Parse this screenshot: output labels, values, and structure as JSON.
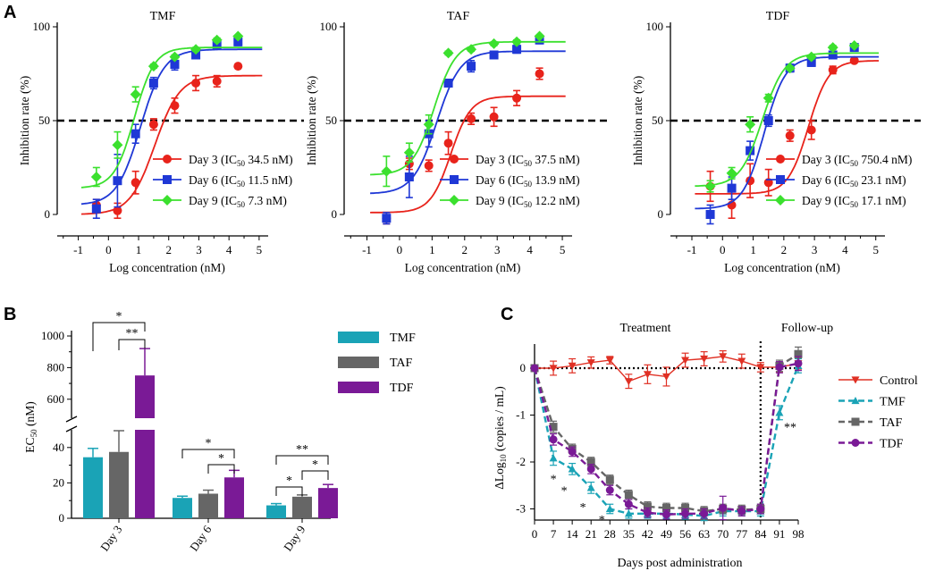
{
  "panel_labels": {
    "a": "A",
    "b": "B",
    "c": "C"
  },
  "common": {
    "a_xlabel": "Log concentration (nM)",
    "a_ylabel": "Inhibition rate (%)",
    "a_xticks": [
      "-1",
      "0",
      "1",
      "2",
      "3",
      "4",
      "5"
    ],
    "a_yticks": [
      "0",
      "50",
      "100"
    ],
    "a_sub": "50"
  },
  "colors": {
    "day3": "#e8231b",
    "day6": "#1f38d6",
    "day9": "#3be02e",
    "tmf": "#1aa3b6",
    "taf": "#666666",
    "tdf": "#7a1a96",
    "control": "#e03024"
  },
  "chart_data": [
    {
      "id": "A1",
      "type": "scatter",
      "title": "TMF",
      "xlabel": "Log concentration (nM)",
      "ylabel": "Inhibition rate (%)",
      "xlim": [
        -1.7,
        5.3
      ],
      "ylim": [
        0,
        100
      ],
      "reference_line_y": 50,
      "series": [
        {
          "name": "Day 3",
          "color": "#e8231b",
          "marker": "circle",
          "legend": "Day 3 (IC",
          "legend_value": " 34.5 nM)",
          "ic50": 34.5,
          "fit": {
            "bottom": 0,
            "top": 74,
            "logEC50": 1.54,
            "hill": 1.05
          },
          "x": [
            -0.4,
            0.3,
            0.9,
            1.5,
            2.2,
            2.9,
            3.6,
            4.3
          ],
          "y": [
            5,
            2,
            17,
            48,
            58,
            70,
            71,
            79
          ],
          "err": [
            3,
            4,
            6,
            3,
            4,
            4,
            3,
            0
          ]
        },
        {
          "name": "Day 6",
          "color": "#1f38d6",
          "marker": "square",
          "legend": "Day 6 (IC",
          "legend_value": " 11.5 nM)",
          "ic50": 11.5,
          "fit": {
            "bottom": 5,
            "top": 88,
            "logEC50": 1.06,
            "hill": 1.1
          },
          "x": [
            -0.4,
            0.3,
            0.9,
            1.5,
            2.2,
            2.9,
            3.6,
            4.3
          ],
          "y": [
            3,
            18,
            43,
            70,
            80,
            85,
            90,
            92
          ],
          "err": [
            5,
            14,
            5,
            3,
            3,
            2,
            2,
            2
          ]
        },
        {
          "name": "Day 9",
          "color": "#3be02e",
          "marker": "diamond",
          "legend": "Day 9 (IC",
          "legend_value": "  7.3 nM)",
          "ic50": 7.3,
          "fit": {
            "bottom": 14,
            "top": 89,
            "logEC50": 0.86,
            "hill": 1.3
          },
          "x": [
            -0.4,
            0.3,
            0.9,
            1.5,
            2.2,
            2.9,
            3.6,
            4.3
          ],
          "y": [
            20,
            37,
            64,
            79,
            84,
            88,
            93,
            95
          ],
          "err": [
            5,
            7,
            4,
            1,
            1,
            1,
            1,
            0
          ]
        }
      ]
    },
    {
      "id": "A2",
      "type": "scatter",
      "title": "TAF",
      "xlabel": "Log concentration (nM)",
      "ylabel": "Inhibition rate (%)",
      "xlim": [
        -1.7,
        5.3
      ],
      "ylim": [
        0,
        100
      ],
      "reference_line_y": 50,
      "series": [
        {
          "name": "Day 3",
          "color": "#e8231b",
          "marker": "circle",
          "legend": "Day 3 (IC",
          "legend_value": " 37.5 nM)",
          "ic50": 37.5,
          "fit": {
            "bottom": 1,
            "top": 63,
            "logEC50": 1.57,
            "hill": 1.4
          },
          "x": [
            -0.4,
            0.3,
            0.9,
            1.5,
            2.2,
            2.9,
            3.6,
            4.3
          ],
          "y": [
            -2,
            27,
            26,
            38,
            51,
            52,
            62,
            75
          ],
          "err": [
            3,
            3,
            3,
            6,
            3,
            5,
            4,
            3
          ]
        },
        {
          "name": "Day 6",
          "color": "#1f38d6",
          "marker": "square",
          "legend": "Day 6 (IC",
          "legend_value": " 13.9 nM)",
          "ic50": 13.9,
          "fit": {
            "bottom": 11,
            "top": 87,
            "logEC50": 1.14,
            "hill": 1.2
          },
          "x": [
            -0.4,
            0.3,
            0.9,
            1.5,
            2.2,
            2.9,
            3.6,
            4.3
          ],
          "y": [
            -2,
            20,
            43,
            70,
            79,
            85,
            88,
            93
          ],
          "err": [
            3,
            11,
            7,
            2,
            3,
            2,
            2,
            2
          ]
        },
        {
          "name": "Day 9",
          "color": "#3be02e",
          "marker": "diamond",
          "legend": "Day 9 (IC",
          "legend_value": " 12.2 nM)",
          "ic50": 12.2,
          "fit": {
            "bottom": 21,
            "top": 92,
            "logEC50": 1.06,
            "hill": 1.3
          },
          "x": [
            -0.4,
            0.3,
            0.9,
            1.5,
            2.2,
            2.9,
            3.6,
            4.3
          ],
          "y": [
            23,
            33,
            48,
            86,
            88,
            91,
            92,
            95
          ],
          "err": [
            8,
            5,
            5,
            1,
            1,
            1,
            1,
            0
          ]
        }
      ]
    },
    {
      "id": "A3",
      "type": "scatter",
      "title": "TDF",
      "xlabel": "Log concentration (nM)",
      "ylabel": "Inhibition rate (%)",
      "xlim": [
        -1.7,
        5.3
      ],
      "ylim": [
        0,
        100
      ],
      "reference_line_y": 50,
      "series": [
        {
          "name": "Day 3",
          "color": "#e8231b",
          "marker": "circle",
          "legend": "Day 3 (IC",
          "legend_value": " 750.4 nM)",
          "ic50": 750.4,
          "fit": {
            "bottom": 11,
            "top": 82,
            "logEC50": 2.8,
            "hill": 1.3
          },
          "x": [
            -0.4,
            0.3,
            0.9,
            1.5,
            2.2,
            2.9,
            3.6,
            4.3
          ],
          "y": [
            15,
            5,
            18,
            17,
            42,
            45,
            77,
            82
          ],
          "err": [
            8,
            7,
            9,
            7,
            3,
            5,
            2,
            1
          ]
        },
        {
          "name": "Day 6",
          "color": "#1f38d6",
          "marker": "square",
          "legend": "Day 6 (IC",
          "legend_value": "   23.1 nM)",
          "ic50": 23.1,
          "fit": {
            "bottom": 3,
            "top": 84,
            "logEC50": 1.36,
            "hill": 1.25
          },
          "x": [
            -0.4,
            0.3,
            0.9,
            1.5,
            2.2,
            2.9,
            3.6,
            4.3
          ],
          "y": [
            0,
            14,
            34,
            50,
            78,
            81,
            85,
            89
          ],
          "err": [
            5,
            6,
            5,
            3,
            2,
            2,
            2,
            1
          ]
        },
        {
          "name": "Day 9",
          "color": "#3be02e",
          "marker": "diamond",
          "legend": "Day 9 (IC",
          "legend_value": "   17.1 nM)",
          "ic50": 17.1,
          "fit": {
            "bottom": 15,
            "top": 86,
            "logEC50": 1.3,
            "hill": 1.2
          },
          "x": [
            -0.4,
            0.3,
            0.9,
            1.5,
            2.2,
            2.9,
            3.6,
            4.3
          ],
          "y": [
            15,
            22,
            48,
            62,
            78,
            84,
            89,
            90
          ],
          "err": [
            3,
            3,
            4,
            2,
            1,
            1,
            1,
            0
          ]
        }
      ]
    },
    {
      "id": "B",
      "type": "bar",
      "ylabel": "EC",
      "ylabel_sub": "50",
      "ylabel_unit": " (nM)",
      "categories": [
        "Day 3",
        "Day 6",
        "Day 9"
      ],
      "yticks_low": [
        "0",
        "20",
        "40"
      ],
      "yticks_high": [
        "600",
        "800",
        "1000"
      ],
      "axis_break": [
        50,
        480
      ],
      "series": [
        {
          "name": "TMF",
          "color": "#1aa3b6",
          "values": [
            34.5,
            11.5,
            7.3
          ],
          "err": [
            5,
            1,
            1
          ]
        },
        {
          "name": "TAF",
          "color": "#666666",
          "values": [
            37.5,
            13.9,
            12.2
          ],
          "err": [
            12,
            2,
            1
          ]
        },
        {
          "name": "TDF",
          "color": "#7a1a96",
          "values": [
            750.4,
            23.1,
            17.1
          ],
          "err": [
            170,
            4,
            2
          ]
        }
      ],
      "significance": [
        {
          "label": "*",
          "day": 0,
          "from": 0,
          "to": 2,
          "level": 2
        },
        {
          "label": "**",
          "day": 0,
          "from": 1,
          "to": 2,
          "level": 1
        },
        {
          "label": "*",
          "day": 1,
          "from": 0,
          "to": 2,
          "level": 2
        },
        {
          "label": "*",
          "day": 1,
          "from": 1,
          "to": 2,
          "level": 1
        },
        {
          "label": "**",
          "day": 2,
          "from": 0,
          "to": 2,
          "level": 3
        },
        {
          "label": "*",
          "day": 2,
          "from": 0,
          "to": 1,
          "level": 1
        },
        {
          "label": "*",
          "day": 2,
          "from": 1,
          "to": 2,
          "level": 2
        }
      ]
    },
    {
      "id": "C",
      "type": "line",
      "xlabel": "Days post administration",
      "ylabel": "ΔLog",
      "ylabel_sub": "10",
      "ylabel_unit": " (copies / mL)",
      "xticks": [
        "0",
        "7",
        "14",
        "21",
        "28",
        "35",
        "42",
        "49",
        "56",
        "63",
        "70",
        "77",
        "84",
        "91",
        "98"
      ],
      "yticks": [
        "0",
        "-1",
        "-2",
        "-3"
      ],
      "xlim": [
        0,
        98
      ],
      "ylim": [
        -3.3,
        0.5
      ],
      "phase_labels": [
        "Treatment",
        "Follow-up"
      ],
      "phase_divider_x": 84,
      "x": [
        0,
        7,
        14,
        21,
        28,
        35,
        42,
        49,
        56,
        63,
        70,
        77,
        84,
        91,
        98
      ],
      "series": [
        {
          "name": "Control",
          "color": "#e03024",
          "marker": "triangle-down",
          "dashed": false,
          "values": [
            0,
            0,
            0.05,
            0.12,
            0.17,
            -0.28,
            -0.13,
            -0.18,
            0.17,
            0.2,
            0.25,
            0.15,
            0.02,
            0.02,
            0.1
          ],
          "err": [
            0,
            0.15,
            0.15,
            0.12,
            0.08,
            0.15,
            0.2,
            0.2,
            0.15,
            0.15,
            0.12,
            0.15,
            0.1,
            0.1,
            0.12
          ]
        },
        {
          "name": "TMF",
          "color": "#1aa3b6",
          "marker": "triangle-up",
          "dashed": true,
          "values": [
            0,
            -1.92,
            -2.15,
            -2.55,
            -3.0,
            -3.1,
            -3.1,
            -3.1,
            -3.12,
            -3.15,
            -3.05,
            -3.05,
            -3.05,
            -0.95,
            0.05
          ],
          "err": [
            0,
            0.15,
            0.12,
            0.12,
            0.1,
            0.1,
            0.1,
            0.1,
            0.1,
            0.1,
            0.1,
            0.1,
            0.1,
            0.15,
            0.15
          ]
        },
        {
          "name": "TAF",
          "color": "#666666",
          "marker": "square",
          "dashed": true,
          "values": [
            0,
            -1.25,
            -1.72,
            -2.0,
            -2.38,
            -2.7,
            -2.95,
            -2.98,
            -2.98,
            -3.05,
            -3.0,
            -3.02,
            -3.0,
            0.05,
            0.3
          ],
          "err": [
            0,
            0.12,
            0.1,
            0.1,
            0.1,
            0.1,
            0.1,
            0.1,
            0.1,
            0.1,
            0.1,
            0.1,
            0.1,
            0.12,
            0.15
          ]
        },
        {
          "name": "TDF",
          "color": "#7a1a96",
          "marker": "circle",
          "dashed": true,
          "values": [
            0,
            -1.52,
            -1.78,
            -2.15,
            -2.6,
            -2.9,
            -3.08,
            -3.12,
            -3.1,
            -3.1,
            -2.98,
            -3.05,
            -3.0,
            0.02,
            0.1
          ],
          "err": [
            0,
            0.12,
            0.1,
            0.1,
            0.1,
            0.1,
            0.1,
            0.1,
            0.1,
            0.1,
            0.25,
            0.1,
            0.1,
            0.12,
            0.15
          ]
        }
      ],
      "annotations": [
        {
          "label": "*",
          "x": 7,
          "y": -2.35
        },
        {
          "label": "*",
          "x": 11,
          "y": -2.6
        },
        {
          "label": "*",
          "x": 18,
          "y": -2.95
        },
        {
          "label": "*",
          "x": 25,
          "y": -3.22
        },
        {
          "label": "**",
          "x": 95,
          "y": -1.25
        }
      ]
    }
  ]
}
